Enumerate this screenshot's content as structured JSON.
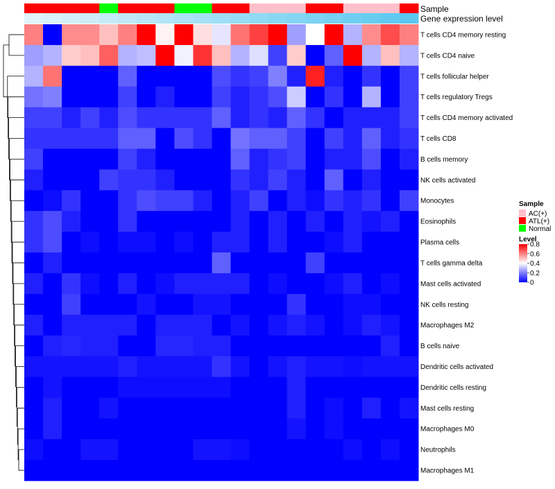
{
  "chart_data": {
    "type": "heatmap",
    "title": "",
    "annotation_labels": {
      "sample": "Sample",
      "gene_expression": "Gene expression level"
    },
    "sample_groups": [
      "ATL(+)",
      "ATL(+)",
      "ATL(+)",
      "ATL(+)",
      "Normal",
      "ATL(+)",
      "ATL(+)",
      "ATL(+)",
      "Normal",
      "Normal",
      "ATL(+)",
      "ATL(+)",
      "AC(+)",
      "AC(+)",
      "AC(+)",
      "ATL(+)",
      "ATL(+)",
      "AC(+)",
      "AC(+)",
      "AC(+)",
      "ATL(+)"
    ],
    "gene_expression_level": [
      0.0,
      0.05,
      0.1,
      0.15,
      0.2,
      0.25,
      0.3,
      0.35,
      0.4,
      0.45,
      0.5,
      0.55,
      0.6,
      0.65,
      0.7,
      0.75,
      0.8,
      0.85,
      0.9,
      0.95,
      1.0
    ],
    "rows": [
      "T cells CD4 memory resting",
      "T cells CD4 naive",
      "T cells follicular helper",
      "T cells regulatory  Tregs",
      "T cells CD4 memory activated",
      "T cells CD8",
      "B cells memory",
      "NK cells activated",
      "Monocytes",
      "Eosinophils",
      "Plasma cells",
      "T cells gamma delta",
      "Mast cells activated",
      "NK cells resting",
      "Macrophages M2",
      "B cells naive",
      "Dendritic cells activated",
      "Dendritic cells resting",
      "Mast cells resting",
      "Macrophages M0",
      "Neutrophils",
      "Macrophages M1"
    ],
    "values": [
      [
        0.6,
        0.0,
        0.58,
        0.58,
        0.5,
        0.6,
        0.8,
        0.42,
        0.8,
        0.45,
        0.36,
        0.62,
        0.7,
        0.8,
        0.25,
        0.4,
        0.8,
        0.28,
        0.58,
        0.68,
        0.6
      ],
      [
        0.25,
        0.28,
        0.48,
        0.5,
        0.65,
        0.28,
        0.3,
        0.8,
        0.38,
        0.72,
        0.5,
        0.28,
        0.35,
        0.1,
        0.48,
        0.0,
        0.15,
        0.8,
        0.28,
        0.5,
        0.28
      ],
      [
        0.28,
        0.62,
        0.0,
        0.0,
        0.0,
        0.15,
        0.0,
        0.0,
        0.0,
        0.0,
        0.12,
        0.08,
        0.1,
        0.2,
        0.05,
        0.75,
        0.05,
        0.0,
        0.08,
        0.0,
        0.1
      ],
      [
        0.18,
        0.2,
        0.0,
        0.0,
        0.0,
        0.1,
        0.0,
        0.05,
        0.0,
        0.0,
        0.1,
        0.05,
        0.08,
        0.12,
        0.32,
        0.0,
        0.08,
        0.0,
        0.28,
        0.0,
        0.1
      ],
      [
        0.1,
        0.1,
        0.05,
        0.1,
        0.05,
        0.12,
        0.08,
        0.08,
        0.08,
        0.08,
        0.15,
        0.05,
        0.08,
        0.05,
        0.15,
        0.08,
        0.0,
        0.05,
        0.05,
        0.05,
        0.1
      ],
      [
        0.08,
        0.08,
        0.08,
        0.08,
        0.08,
        0.15,
        0.15,
        0.0,
        0.12,
        0.08,
        0.0,
        0.18,
        0.15,
        0.15,
        0.1,
        0.0,
        0.1,
        0.05,
        0.15,
        0.05,
        0.08
      ],
      [
        0.1,
        0.0,
        0.0,
        0.0,
        0.0,
        0.1,
        0.05,
        0.0,
        0.0,
        0.0,
        0.0,
        0.15,
        0.05,
        0.08,
        0.1,
        0.0,
        0.05,
        0.05,
        0.12,
        0.0,
        0.05
      ],
      [
        0.05,
        0.0,
        0.0,
        0.0,
        0.1,
        0.08,
        0.08,
        0.05,
        0.0,
        0.0,
        0.0,
        0.08,
        0.05,
        0.1,
        0.05,
        0.0,
        0.15,
        0.0,
        0.05,
        0.0,
        0.0
      ],
      [
        0.0,
        0.02,
        0.08,
        0.0,
        0.0,
        0.08,
        0.12,
        0.1,
        0.1,
        0.05,
        0.0,
        0.05,
        0.1,
        0.0,
        0.05,
        0.02,
        0.08,
        0.05,
        0.08,
        0.0,
        0.1
      ],
      [
        0.08,
        0.12,
        0.05,
        0.0,
        0.0,
        0.08,
        0.0,
        0.0,
        0.0,
        0.0,
        0.0,
        0.05,
        0.0,
        0.05,
        0.0,
        0.05,
        0.0,
        0.05,
        0.03,
        0.05,
        0.0
      ],
      [
        0.08,
        0.12,
        0.0,
        0.02,
        0.0,
        0.02,
        0.02,
        0.0,
        0.02,
        0.0,
        0.05,
        0.05,
        0.0,
        0.05,
        0.0,
        0.0,
        0.02,
        0.05,
        0.0,
        0.0,
        0.0
      ],
      [
        0.0,
        0.05,
        0.0,
        0.0,
        0.0,
        0.0,
        0.0,
        0.0,
        0.0,
        0.0,
        0.15,
        0.0,
        0.0,
        0.0,
        0.0,
        0.1,
        0.0,
        0.0,
        0.0,
        0.0,
        0.0
      ],
      [
        0.05,
        0.0,
        0.08,
        0.02,
        0.0,
        0.05,
        0.0,
        0.02,
        0.05,
        0.05,
        0.05,
        0.05,
        0.0,
        0.02,
        0.0,
        0.0,
        0.02,
        0.05,
        0.0,
        0.02,
        0.0
      ],
      [
        0.0,
        0.0,
        0.1,
        0.0,
        0.0,
        0.0,
        0.03,
        0.0,
        0.0,
        0.03,
        0.03,
        0.0,
        0.0,
        0.0,
        0.08,
        0.0,
        0.0,
        0.02,
        0.02,
        0.0,
        0.0
      ],
      [
        0.05,
        0.0,
        0.05,
        0.05,
        0.05,
        0.05,
        0.0,
        0.05,
        0.05,
        0.05,
        0.0,
        0.03,
        0.0,
        0.03,
        0.05,
        0.03,
        0.0,
        0.02,
        0.05,
        0.03,
        0.0
      ],
      [
        0.0,
        0.05,
        0.06,
        0.05,
        0.05,
        0.0,
        0.0,
        0.06,
        0.06,
        0.05,
        0.05,
        0.0,
        0.0,
        0.0,
        0.0,
        0.0,
        0.0,
        0.0,
        0.0,
        0.05,
        0.0
      ],
      [
        0.03,
        0.03,
        0.03,
        0.03,
        0.03,
        0.05,
        0.03,
        0.03,
        0.03,
        0.03,
        0.08,
        0.03,
        0.0,
        0.03,
        0.05,
        0.03,
        0.03,
        0.02,
        0.03,
        0.03,
        0.03
      ],
      [
        0.0,
        0.03,
        0.0,
        0.0,
        0.0,
        0.02,
        0.02,
        0.02,
        0.02,
        0.02,
        0.02,
        0.0,
        0.0,
        0.0,
        0.05,
        0.0,
        0.0,
        0.0,
        0.0,
        0.0,
        0.0
      ],
      [
        0.0,
        0.05,
        0.0,
        0.0,
        0.03,
        0.0,
        0.0,
        0.0,
        0.0,
        0.0,
        0.0,
        0.0,
        0.0,
        0.0,
        0.05,
        0.0,
        0.02,
        0.0,
        0.05,
        0.0,
        0.03
      ],
      [
        0.0,
        0.05,
        0.0,
        0.0,
        0.0,
        0.0,
        0.0,
        0.0,
        0.0,
        0.0,
        0.0,
        0.0,
        0.0,
        0.0,
        0.03,
        0.0,
        0.02,
        0.0,
        0.0,
        0.0,
        0.0
      ],
      [
        0.02,
        0.0,
        0.0,
        0.03,
        0.03,
        0.0,
        0.0,
        0.0,
        0.0,
        0.03,
        0.03,
        0.02,
        0.0,
        0.0,
        0.0,
        0.0,
        0.0,
        0.02,
        0.0,
        0.02,
        0.0
      ],
      [
        0.0,
        0.0,
        0.0,
        0.0,
        0.0,
        0.0,
        0.0,
        0.0,
        0.0,
        0.0,
        0.0,
        0.0,
        0.0,
        0.0,
        0.0,
        0.0,
        0.0,
        0.0,
        0.0,
        0.0,
        0.0
      ]
    ],
    "color_scale": {
      "min": 0,
      "mid": 0.4,
      "max": 0.8,
      "low_color": "#0000ff",
      "mid_color": "#ffffff",
      "high_color": "#ff0000"
    },
    "legend": {
      "placement": "right",
      "sample_title": "Sample",
      "sample_entries": [
        {
          "label": "AC(+)",
          "color": "#ffc0cb"
        },
        {
          "label": "ATL(+)",
          "color": "#ff0000"
        },
        {
          "label": "Normal",
          "color": "#00ff00"
        }
      ],
      "level_title": "Level",
      "level_ticks": [
        "0.8",
        "0.6",
        "0.4",
        "0.2",
        "0"
      ],
      "level_tick_values": [
        0.8,
        0.6,
        0.4,
        0.2,
        0
      ]
    },
    "gene_expression_colors": [
      "#e0f4fb",
      "#5bc8f0"
    ],
    "row_dendrogram": true
  }
}
